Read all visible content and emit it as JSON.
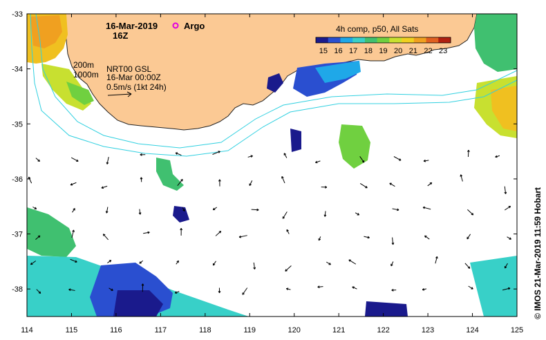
{
  "header": {
    "date": "16-Mar-2019",
    "time": "16Z",
    "argo_label": "Argo"
  },
  "colorbar": {
    "title": "4h comp, p50, All Sats",
    "ticks": [
      "15",
      "16",
      "17",
      "18",
      "19",
      "20",
      "21",
      "22",
      "23"
    ],
    "range": [
      14.5,
      23.5
    ],
    "colors": [
      "#1a1a8c",
      "#2a4fd0",
      "#1fa8e8",
      "#38d0c8",
      "#40c070",
      "#70d040",
      "#c8e030",
      "#f0d020",
      "#f0a020",
      "#e06020",
      "#b02010"
    ]
  },
  "legend": {
    "isobath_1": "200m",
    "isobath_2": "1000m",
    "current_source": "NRT00 GSL",
    "current_time": "16-Mar 00:00Z",
    "current_scale": "0.5m/s (1kt 24h)"
  },
  "axes": {
    "x_ticks": [
      "114",
      "115",
      "116",
      "117",
      "118",
      "119",
      "120",
      "121",
      "122",
      "123",
      "124",
      "125"
    ],
    "y_ticks": [
      "-33",
      "-34",
      "-35",
      "-36",
      "-37",
      "-38"
    ],
    "x_range": [
      114,
      125
    ],
    "y_range": [
      -38.5,
      -33
    ]
  },
  "credit": "© IMOS 21-Mar-2019 11:59 Hobart",
  "colors": {
    "land": "#fbc994",
    "isobath": "#30d0e0",
    "argo": "#e000e0"
  }
}
